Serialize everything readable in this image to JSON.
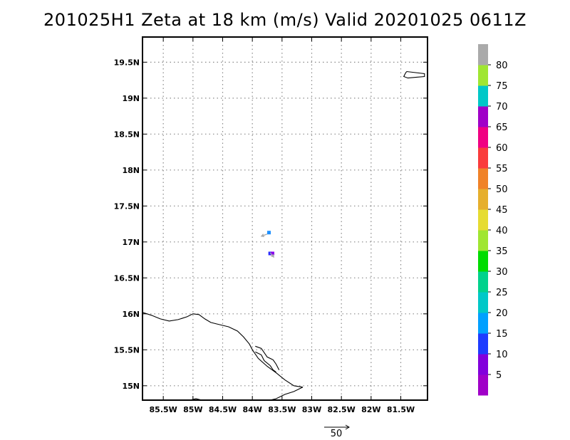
{
  "title": "201025H1 Zeta at 18 km (m/s) Valid 20201025 0611Z",
  "map": {
    "lon_range": [
      -85.85,
      -81.05
    ],
    "lat_range": [
      14.8,
      19.85
    ],
    "lon_ticks": [
      {
        "value": -85.5,
        "label": "85.5W"
      },
      {
        "value": -85.0,
        "label": "85W"
      },
      {
        "value": -84.5,
        "label": "84.5W"
      },
      {
        "value": -84.0,
        "label": "84W"
      },
      {
        "value": -83.5,
        "label": "83.5W"
      },
      {
        "value": -83.0,
        "label": "83W"
      },
      {
        "value": -82.5,
        "label": "82.5W"
      },
      {
        "value": -82.0,
        "label": "82W"
      },
      {
        "value": -81.5,
        "label": "81.5W"
      }
    ],
    "lat_ticks": [
      {
        "value": 15.0,
        "label": "15N"
      },
      {
        "value": 15.5,
        "label": "15.5N"
      },
      {
        "value": 16.0,
        "label": "16N"
      },
      {
        "value": 16.5,
        "label": "16.5N"
      },
      {
        "value": 17.0,
        "label": "17N"
      },
      {
        "value": 17.5,
        "label": "17.5N"
      },
      {
        "value": 18.0,
        "label": "18N"
      },
      {
        "value": 18.5,
        "label": "18.5N"
      },
      {
        "value": 19.0,
        "label": "19N"
      },
      {
        "value": 19.5,
        "label": "19.5N"
      }
    ],
    "grid": "dotted",
    "coastlines": {
      "honduras_north_coast": [
        [
          -85.85,
          16.02
        ],
        [
          -85.7,
          15.98
        ],
        [
          -85.55,
          15.93
        ],
        [
          -85.4,
          15.9
        ],
        [
          -85.25,
          15.92
        ],
        [
          -85.1,
          15.96
        ],
        [
          -85.0,
          16.0
        ],
        [
          -84.9,
          15.99
        ],
        [
          -84.8,
          15.93
        ],
        [
          -84.7,
          15.88
        ],
        [
          -84.6,
          15.86
        ],
        [
          -84.5,
          15.84
        ],
        [
          -84.4,
          15.82
        ],
        [
          -84.25,
          15.76
        ],
        [
          -84.15,
          15.68
        ],
        [
          -84.05,
          15.58
        ],
        [
          -84.0,
          15.5
        ],
        [
          -83.9,
          15.38
        ],
        [
          -83.75,
          15.27
        ],
        [
          -83.6,
          15.18
        ],
        [
          -83.45,
          15.08
        ],
        [
          -83.3,
          15.0
        ],
        [
          -83.15,
          14.98
        ]
      ],
      "caratasca_lagoon_north": [
        [
          -83.95,
          15.55
        ],
        [
          -83.85,
          15.52
        ],
        [
          -83.8,
          15.46
        ],
        [
          -83.75,
          15.4
        ],
        [
          -83.65,
          15.36
        ],
        [
          -83.6,
          15.3
        ],
        [
          -83.55,
          15.22
        ]
      ],
      "caratasca_lagoon_south": [
        [
          -83.95,
          15.47
        ],
        [
          -83.85,
          15.43
        ],
        [
          -83.8,
          15.35
        ],
        [
          -83.7,
          15.28
        ],
        [
          -83.65,
          15.22
        ],
        [
          -83.6,
          15.19
        ]
      ],
      "nicaragua_coast": [
        [
          -83.15,
          14.98
        ],
        [
          -83.3,
          14.92
        ],
        [
          -83.45,
          14.88
        ],
        [
          -83.6,
          14.82
        ],
        [
          -83.7,
          14.8
        ]
      ],
      "gulf_of_honduras": [
        [
          -85.05,
          14.8
        ],
        [
          -84.95,
          14.82
        ],
        [
          -84.85,
          14.8
        ]
      ],
      "cayman_islands": [
        [
          -81.4,
          19.37
        ],
        [
          -81.3,
          19.36
        ],
        [
          -81.1,
          19.34
        ],
        [
          -81.1,
          19.3
        ],
        [
          -81.25,
          19.29
        ],
        [
          -81.38,
          19.28
        ],
        [
          -81.45,
          19.3
        ],
        [
          -81.42,
          19.35
        ],
        [
          -81.4,
          19.37
        ]
      ]
    },
    "vectors": [
      {
        "lon": -83.75,
        "lat": 17.11,
        "u": -0.8,
        "v": -0.3,
        "color": "#aaaaaa"
      },
      {
        "lon": -83.7,
        "lat": 16.85,
        "u": 0.5,
        "v": -0.6,
        "color": "#aaaaaa"
      }
    ],
    "shaded_cells": [
      {
        "lon": -83.72,
        "lat": 17.13,
        "color": "#1e90ff"
      },
      {
        "lon": -83.7,
        "lat": 16.84,
        "color": "#2828ff"
      },
      {
        "lon": -83.66,
        "lat": 16.84,
        "color": "#8800ee"
      }
    ]
  },
  "colorbar": {
    "colors": [
      "#a000c8",
      "#8200dc",
      "#1e3cff",
      "#00a0ff",
      "#00c8c8",
      "#00d28c",
      "#00dc00",
      "#a0e632",
      "#e6dc32",
      "#e6af2d",
      "#f08228",
      "#fa3c3c",
      "#f00082",
      "#a000c8",
      "#00c8c8",
      "#a0e632",
      "#aaaaaa"
    ],
    "labels": [
      "5",
      "10",
      "15",
      "20",
      "25",
      "30",
      "35",
      "40",
      "45",
      "50",
      "55",
      "60",
      "65",
      "70",
      "75",
      "80"
    ]
  },
  "reference_vector": {
    "label": "50"
  }
}
